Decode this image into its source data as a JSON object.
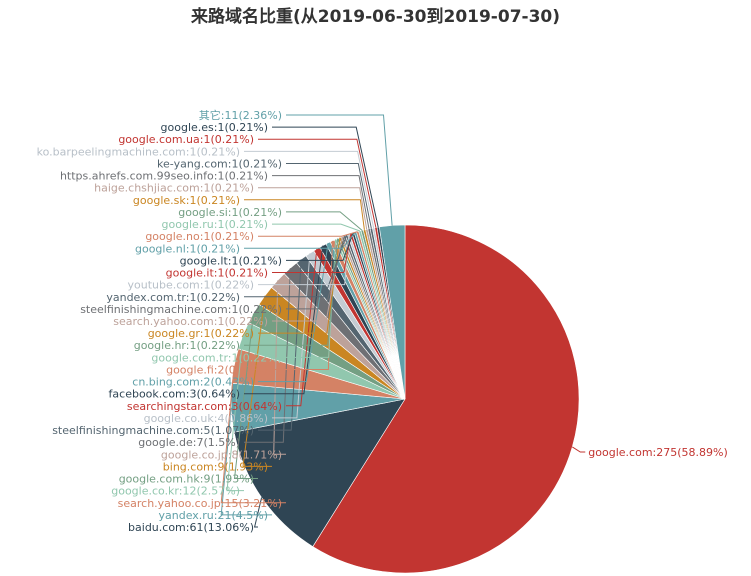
{
  "chart_data": {
    "type": "pie",
    "title": "来路域名比重(从2019-06-30到2019-07-30)",
    "palette": [
      "#c23531",
      "#2f4554",
      "#61a0a8",
      "#d48265",
      "#91c7ae",
      "#749f83",
      "#ca8622",
      "#bda29a",
      "#6e7074",
      "#546570",
      "#c4ccd3"
    ],
    "slices": [
      {
        "name": "google.com",
        "value": 275,
        "label": "google.com:275(58.89%)"
      },
      {
        "name": "baidu.com",
        "value": 61,
        "label": "baidu.com:61(13.06%)"
      },
      {
        "name": "yandex.ru",
        "value": 21,
        "label": "yandex.ru:21(4.5%)"
      },
      {
        "name": "search.yahoo.co.jp",
        "value": 15,
        "label": "search.yahoo.co.jp:15(3.21%)"
      },
      {
        "name": "google.co.kr",
        "value": 12,
        "label": "google.co.kr:12(2.57%)"
      },
      {
        "name": "google.com.hk",
        "value": 9,
        "label": "google.com.hk:9(1.93%)"
      },
      {
        "name": "bing.com",
        "value": 9,
        "label": "bing.com:9(1.93%)"
      },
      {
        "name": "google.co.jp",
        "value": 8,
        "label": "google.co.jp:8(1.71%)"
      },
      {
        "name": "google.de",
        "value": 7,
        "label": "google.de:7(1.5%)"
      },
      {
        "name": "steelfinishingmachine.com",
        "value": 5,
        "label": "steelfinishingmachine.com:5(1.07%)"
      },
      {
        "name": "google.co.uk",
        "value": 4,
        "label": "google.co.uk:4(0.86%)"
      },
      {
        "name": "searchingstar.com",
        "value": 3,
        "label": "searchingstar.com:3(0.64%)"
      },
      {
        "name": "facebook.com",
        "value": 3,
        "label": "facebook.com:3(0.64%)"
      },
      {
        "name": "cn.bing.com",
        "value": 2,
        "label": "cn.bing.com:2(0.43%)"
      },
      {
        "name": "google.fi",
        "value": 2,
        "label": "google.fi:2(0.43%)"
      },
      {
        "name": "google.com.tr",
        "value": 1,
        "label": "google.com.tr:1(0.22%)"
      },
      {
        "name": "google.hr",
        "value": 1,
        "label": "google.hr:1(0.22%)"
      },
      {
        "name": "google.gr",
        "value": 1,
        "label": "google.gr:1(0.22%)"
      },
      {
        "name": "search.yahoo.com",
        "value": 1,
        "label": "search.yahoo.com:1(0.22%)"
      },
      {
        "name": "steelfinishingmachine.com",
        "value": 1,
        "label": "steelfinishingmachine.com:1(0.22%)"
      },
      {
        "name": "yandex.com.tr",
        "value": 1,
        "label": "yandex.com.tr:1(0.22%)"
      },
      {
        "name": "youtube.com",
        "value": 1,
        "label": "youtube.com:1(0.22%)"
      },
      {
        "name": "google.it",
        "value": 1,
        "label": "google.it:1(0.21%)"
      },
      {
        "name": "google.lt",
        "value": 1,
        "label": "google.lt:1(0.21%)"
      },
      {
        "name": "google.nl",
        "value": 1,
        "label": "google.nl:1(0.21%)"
      },
      {
        "name": "google.no",
        "value": 1,
        "label": "google.no:1(0.21%)"
      },
      {
        "name": "google.ru",
        "value": 1,
        "label": "google.ru:1(0.21%)"
      },
      {
        "name": "google.si",
        "value": 1,
        "label": "google.si:1(0.21%)"
      },
      {
        "name": "google.sk",
        "value": 1,
        "label": "google.sk:1(0.21%)"
      },
      {
        "name": "haige.chshjiac.com",
        "value": 1,
        "label": "haige.chshjiac.com:1(0.21%)"
      },
      {
        "name": "https.ahrefs.com.99seo.info",
        "value": 1,
        "label": "https.ahrefs.com.99seo.info:1(0.21%)"
      },
      {
        "name": "ke-yang.com",
        "value": 1,
        "label": "ke-yang.com:1(0.21%)"
      },
      {
        "name": "ko.barpeelingmachine.com",
        "value": 1,
        "label": "ko.barpeelingmachine.com:1(0.21%)"
      },
      {
        "name": "google.com.ua",
        "value": 1,
        "label": "google.com.ua:1(0.21%)"
      },
      {
        "name": "google.es",
        "value": 1,
        "label": "google.es:1(0.21%)"
      },
      {
        "name": "其它",
        "value": 11,
        "label": "其它:11(2.36%)"
      }
    ]
  }
}
